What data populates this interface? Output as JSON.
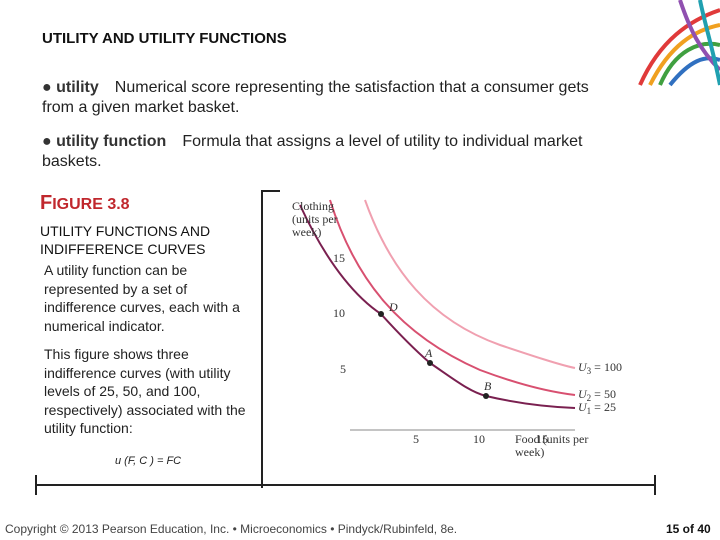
{
  "header": {
    "title": "UTILITY AND UTILITY FUNCTIONS"
  },
  "definitions": [
    {
      "term": "● utility",
      "text": "Numerical score representing the satisfaction that a consumer gets from a given market basket."
    },
    {
      "term": "● utility function",
      "text": "Formula that assigns a level of utility to individual market baskets."
    }
  ],
  "figure": {
    "label": "FIGURE 3.8",
    "title": "UTILITY FUNCTIONS AND INDIFFERENCE CURVES",
    "paragraphs": [
      "A utility function can be represented by a set of indifference curves, each with a numerical indicator.",
      "This figure shows three indifference curves (with utility levels of 25, 50, and 100, respectively) associated with the utility function:"
    ],
    "formula": "u (F, C ) = FC",
    "y_axis_label": "Clothing (units per week)",
    "x_axis_label": "Food (units per week)",
    "yticks": [
      "15",
      "10",
      "5"
    ],
    "xticks": [
      "5",
      "10",
      "15"
    ],
    "points": [
      "D",
      "A",
      "B"
    ],
    "curves": [
      {
        "symbol": "U",
        "subscript": "3",
        "level": "= 100"
      },
      {
        "symbol": "U",
        "subscript": "2",
        "level": "= 50"
      },
      {
        "symbol": "U",
        "subscript": "1",
        "level": "= 25"
      }
    ]
  },
  "footer": {
    "copyright": "Copyright © 2013 Pearson Education, Inc. • Microeconomics • Pindyck/Rubinfeld, 8e.",
    "page": "15 of 40"
  }
}
